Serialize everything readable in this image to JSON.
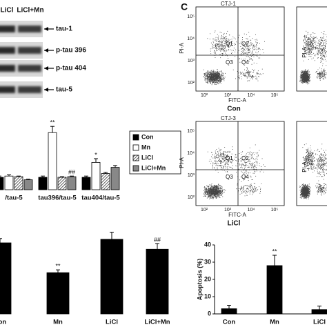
{
  "panel_label": "C",
  "blot": {
    "lanes": [
      "LiCl",
      "LiCl+Mn"
    ],
    "bands": [
      "tau-1",
      "p-tau 396",
      "p-tau 404",
      "tau-5"
    ]
  },
  "flow": {
    "plots": [
      {
        "title": "CTJ-1",
        "caption": "Con"
      },
      {
        "title": "CTJ-3",
        "caption": "LiCl"
      }
    ],
    "quadrants": [
      "Q1",
      "Q2",
      "Q3",
      "Q4"
    ],
    "x_label": "FITC-A",
    "y_label": "PI-A",
    "x_tick_labels": [
      "10²",
      "10³",
      "10⁴",
      "10⁵"
    ],
    "y_tick_labels": [
      "10²",
      "10³",
      "10⁴",
      "10⁵"
    ]
  },
  "chart_data": [
    {
      "type": "bar",
      "categories": [
        "/tau-5",
        "tau396/tau-5",
        "tau404/tau-5"
      ],
      "series": [
        {
          "name": "Con",
          "color": "#000000",
          "values": [
            1,
            1,
            1
          ],
          "errors": [
            0.1,
            0.1,
            0.1
          ],
          "significance": [
            null,
            null,
            null
          ]
        },
        {
          "name": "Mn",
          "color": "#ffffff",
          "values": [
            1.1,
            4.6,
            2.2
          ],
          "errors": [
            0.1,
            0.5,
            0.3
          ],
          "significance": [
            null,
            "**",
            "*"
          ]
        },
        {
          "name": "LiCl",
          "color": "#ffffff",
          "hatched": true,
          "values": [
            1.05,
            1,
            1.3
          ],
          "errors": [
            0.05,
            0.05,
            0.1
          ],
          "significance": [
            null,
            null,
            null
          ]
        },
        {
          "name": "LiCl+Mn",
          "color": "#888888",
          "values": [
            0.8,
            1.05,
            1.8
          ],
          "errors": [
            0.05,
            0.05,
            0.15
          ],
          "significance": [
            null,
            "##",
            null
          ]
        }
      ]
    },
    {
      "type": "bar",
      "categories": [
        "Con",
        "Mn",
        "LiCl",
        "LiCl+Mn"
      ],
      "color": "#000000",
      "values": [
        100,
        58,
        105,
        91
      ],
      "errors": [
        6,
        4,
        10,
        8
      ],
      "significance": [
        null,
        "**",
        null,
        "##"
      ]
    },
    {
      "type": "bar",
      "categories": [
        "Con",
        "Mn",
        "LiCl"
      ],
      "color": "#000000",
      "y_label": "Apoptosis (%)",
      "values": [
        3,
        28,
        2.5
      ],
      "errors": [
        2,
        6,
        2
      ],
      "significance": [
        null,
        "**",
        null
      ],
      "ylim": [
        0,
        40
      ],
      "yticks": [
        0,
        10,
        20,
        30,
        40
      ]
    }
  ]
}
